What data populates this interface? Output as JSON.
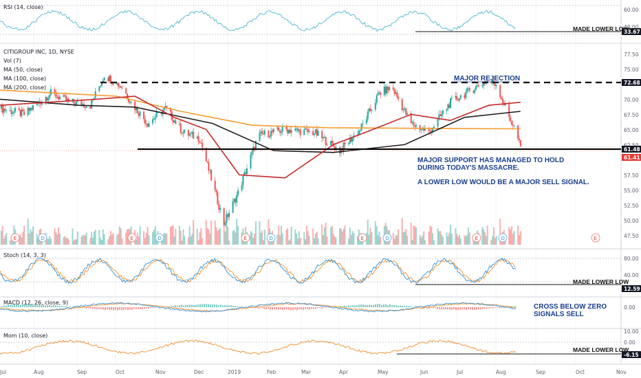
{
  "colors": {
    "up": "#26a69a",
    "down": "#ef5350",
    "rsi": "#4bb6cf",
    "ma50": "#c62828",
    "ma100": "#1f1f1f",
    "ma200": "#f39c2e",
    "stoch_k": "#2f8fd6",
    "stoch_d": "#f28c28",
    "macd_line": "#2f8fd6",
    "signal_line": "#f28c28",
    "mom": "#f28c28",
    "note_text": "#1a3e8c",
    "tag_dark": "#131722",
    "tag_red": "#e53935"
  },
  "rsi_panel": {
    "title": "RSI (14, close)",
    "axis_labels": [
      "60.00",
      "40.00"
    ],
    "value_tag": "33.67",
    "annotation": "MADE LOWER LOW"
  },
  "price_panel": {
    "legend": [
      "CITIGROUP INC, 1D, NYSE",
      "Vol (7)",
      "MA (50, close)",
      "MA (100, close)",
      "MA (200, close)"
    ],
    "axis_labels": [
      "77.50",
      "75.00",
      "70.00",
      "67.50",
      "65.00",
      "62.50",
      "57.50",
      "55.00",
      "52.50",
      "50.00",
      "47.50"
    ],
    "resistance_tag": "72.68",
    "support_tag": "61.48",
    "last_price_tag": "61.41",
    "annotation_top": "MAJOR REJECTION",
    "annotation_support_1": "MAJOR SUPPORT HAS MANAGED TO HOLD",
    "annotation_support_2": "DURING TODAY'S MASSACRE.",
    "annotation_sell": "A LOWER LOW WOULD BE A MAJOR SELL SIGNAL.",
    "event_markers": [
      "E",
      "D",
      "E",
      "D",
      "E",
      "D",
      "E",
      "D",
      "E",
      "D",
      "E"
    ]
  },
  "stoch_panel": {
    "title": "Stoch (14, 3, 3)",
    "axis_labels": [
      "80.00",
      "40.00"
    ],
    "value_tag": "12.59",
    "annotation": "MADE LOWER LOW"
  },
  "macd_panel": {
    "title": "MACD (12, 26, close, 9)",
    "axis_labels": [
      "0.00"
    ],
    "annotation_1": "CROSS BELOW ZERO",
    "annotation_2": "SIGNALS SELL"
  },
  "mom_panel": {
    "title": "Mom (10, close)",
    "axis_labels": [
      "10.00",
      "0.00"
    ],
    "value_tag": "-6.15",
    "annotation": "MADE LOWER LOW"
  },
  "time_axis": [
    "Jul",
    "Aug",
    "Sep",
    "Oct",
    "Nov",
    "Dec",
    "2019",
    "Feb",
    "Mar",
    "Apr",
    "May",
    "Jun",
    "Jul",
    "Aug",
    "Sep",
    "Oct",
    "Nov"
  ],
  "chart_data": {
    "type": "candlestick",
    "title": "CITIGROUP INC, 1D, NYSE",
    "x_range": [
      "2018-07",
      "2019-11"
    ],
    "ylim": [
      45,
      79
    ],
    "horizontal_levels": {
      "major_rejection": 72.68,
      "major_support": 61.48,
      "last_close": 61.41
    },
    "price_path": [
      [
        "2018-07-01",
        68.0
      ],
      [
        "2018-07-20",
        67.0
      ],
      [
        "2018-08-10",
        70.5
      ],
      [
        "2018-08-25",
        69.0
      ],
      [
        "2018-09-10",
        68.5
      ],
      [
        "2018-09-21",
        73.5
      ],
      [
        "2018-10-05",
        71.5
      ],
      [
        "2018-10-12",
        69.0
      ],
      [
        "2018-10-25",
        65.5
      ],
      [
        "2018-11-08",
        68.0
      ],
      [
        "2018-11-22",
        64.0
      ],
      [
        "2018-12-05",
        63.0
      ],
      [
        "2018-12-24",
        49.0
      ],
      [
        "2019-01-04",
        54.0
      ],
      [
        "2019-01-20",
        63.5
      ],
      [
        "2019-02-10",
        64.5
      ],
      [
        "2019-03-05",
        64.0
      ],
      [
        "2019-03-25",
        61.0
      ],
      [
        "2019-04-10",
        64.5
      ],
      [
        "2019-04-25",
        70.5
      ],
      [
        "2019-05-05",
        71.5
      ],
      [
        "2019-05-20",
        65.5
      ],
      [
        "2019-06-03",
        64.0
      ],
      [
        "2019-06-20",
        69.0
      ],
      [
        "2019-07-10",
        71.5
      ],
      [
        "2019-07-18",
        72.5
      ],
      [
        "2019-07-26",
        72.0
      ],
      [
        "2019-08-05",
        66.5
      ],
      [
        "2019-08-10",
        64.5
      ],
      [
        "2019-08-14",
        61.4
      ]
    ],
    "ma50_path": [
      [
        "2018-07-01",
        68.5
      ],
      [
        "2018-09-15",
        69.5
      ],
      [
        "2018-10-15",
        70.0
      ],
      [
        "2018-11-15",
        66.5
      ],
      [
        "2018-12-10",
        64.5
      ],
      [
        "2019-01-05",
        57.0
      ],
      [
        "2019-02-10",
        56.5
      ],
      [
        "2019-03-20",
        62.0
      ],
      [
        "2019-04-20",
        64.5
      ],
      [
        "2019-05-20",
        67.0
      ],
      [
        "2019-06-20",
        66.0
      ],
      [
        "2019-07-20",
        68.5
      ],
      [
        "2019-08-14",
        69.0
      ]
    ],
    "ma100_path": [
      [
        "2018-07-01",
        69.5
      ],
      [
        "2018-09-01",
        68.5
      ],
      [
        "2018-10-15",
        68.2
      ],
      [
        "2018-12-15",
        65.5
      ],
      [
        "2019-02-01",
        61.0
      ],
      [
        "2019-03-20",
        60.7
      ],
      [
        "2019-05-15",
        62.0
      ],
      [
        "2019-07-01",
        66.5
      ],
      [
        "2019-08-14",
        67.5
      ]
    ],
    "ma200_path": [
      [
        "2018-07-01",
        71.0
      ],
      [
        "2018-10-01",
        70.0
      ],
      [
        "2018-11-20",
        67.5
      ],
      [
        "2019-01-15",
        65.2
      ],
      [
        "2019-03-15",
        64.8
      ],
      [
        "2019-05-15",
        64.7
      ],
      [
        "2019-08-14",
        64.6
      ]
    ],
    "indicators": {
      "rsi_last": 33.67,
      "stoch_last": 12.59,
      "mom_last": -6.15
    }
  }
}
